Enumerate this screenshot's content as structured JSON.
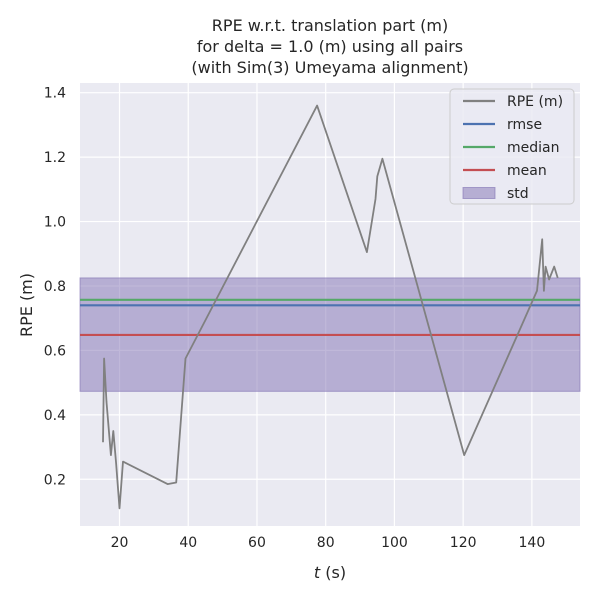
{
  "chart_data": {
    "type": "line",
    "title": [
      "RPE w.r.t. translation part (m)",
      "for delta = 1.0 (m) using all pairs",
      "(with Sim(3) Umeyama alignment)"
    ],
    "xlabel_var": "t",
    "xlabel_unit": " (s)",
    "ylabel": "RPE (m)",
    "xlim": [
      8.5,
      154
    ],
    "ylim": [
      0.055,
      1.43
    ],
    "xticks": [
      20,
      40,
      60,
      80,
      100,
      120,
      140
    ],
    "yticks": [
      0.2,
      0.4,
      0.6,
      0.8,
      1.0,
      1.2,
      1.4
    ],
    "xtick_labels": [
      "20",
      "40",
      "60",
      "80",
      "100",
      "120",
      "140"
    ],
    "ytick_labels": [
      "0.2",
      "0.4",
      "0.6",
      "0.8",
      "1.0",
      "1.2",
      "1.4"
    ],
    "grid": true,
    "legend_position": "top-right",
    "series": [
      {
        "name": "RPE (m)",
        "color": "#808080",
        "x": [
          15.2,
          15.5,
          16.2,
          17.5,
          18.2,
          19.0,
          20.0,
          21.0,
          34.0,
          36.5,
          39.2,
          77.5,
          92.0,
          94.5,
          95.0,
          96.5,
          120.3,
          141.5,
          143.0,
          143.5,
          144.0,
          145.0,
          146.5,
          147.5
        ],
        "y": [
          0.315,
          0.575,
          0.44,
          0.275,
          0.35,
          0.25,
          0.11,
          0.255,
          0.185,
          0.19,
          0.575,
          1.36,
          0.905,
          1.07,
          1.14,
          1.195,
          0.275,
          0.785,
          0.945,
          0.785,
          0.86,
          0.82,
          0.86,
          0.825
        ]
      }
    ],
    "stats": [
      {
        "name": "rmse",
        "value": 0.74,
        "color": "#4c72b0"
      },
      {
        "name": "median",
        "value": 0.757,
        "color": "#55a868"
      },
      {
        "name": "mean",
        "value": 0.648,
        "color": "#c44e52"
      }
    ],
    "std": {
      "name": "std",
      "low": 0.473,
      "high": 0.825,
      "color": "#8172b3"
    }
  }
}
